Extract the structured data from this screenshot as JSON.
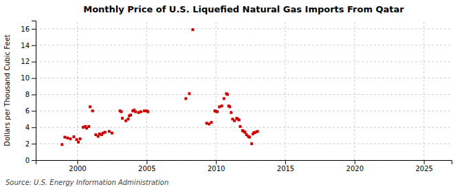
{
  "chart_data": {
    "type": "scatter",
    "title": "Monthly Price of U.S. Liquefied Natural Gas Imports From Qatar",
    "ylabel": "Dollars per Thousand Cubic Feet",
    "annotations": [
      "Source: U.S. Energy Information Administration"
    ],
    "color": "#cc0000",
    "marker": "square",
    "grid": true,
    "xlim": [
      1997.0,
      2027.0
    ],
    "ylim": [
      0,
      17
    ],
    "xticks": [
      2000,
      2005,
      2010,
      2015,
      2020,
      2025
    ],
    "yticks": [
      0,
      2,
      4,
      6,
      8,
      10,
      12,
      14,
      16
    ],
    "x": [
      1998.9,
      1999.1,
      1999.3,
      1999.5,
      1999.75,
      1999.95,
      2000.08,
      2000.2,
      2000.42,
      2000.58,
      2000.67,
      2000.83,
      2000.92,
      2001.1,
      2001.33,
      2001.5,
      2001.6,
      2001.75,
      2001.85,
      2002.0,
      2002.3,
      2002.5,
      2003.08,
      2003.17,
      2003.25,
      2003.5,
      2003.67,
      2003.75,
      2003.85,
      2004.0,
      2004.1,
      2004.2,
      2004.42,
      2004.58,
      2004.83,
      2005.0,
      2005.1,
      2007.83,
      2008.08,
      2009.33,
      2009.5,
      2009.67,
      2009.92,
      2010.0,
      2010.1,
      2010.25,
      2010.42,
      2010.58,
      2010.75,
      2010.83,
      2010.92,
      2011.0,
      2011.1,
      2011.2,
      2011.33,
      2011.5,
      2011.58,
      2011.67,
      2011.75,
      2011.92,
      2012.0,
      2012.1,
      2012.2,
      2012.33,
      2012.42,
      2012.58,
      2012.67,
      2012.75,
      2012.85,
      2013.0,
      2008.33
    ],
    "values": [
      1.9,
      2.8,
      2.7,
      2.6,
      2.85,
      2.5,
      2.2,
      2.6,
      4.0,
      4.1,
      3.9,
      4.1,
      6.5,
      6.0,
      3.1,
      2.9,
      3.2,
      3.1,
      3.3,
      3.4,
      3.5,
      3.3,
      6.0,
      5.9,
      5.1,
      4.8,
      5.0,
      5.4,
      5.5,
      6.0,
      6.1,
      5.9,
      5.8,
      5.9,
      6.0,
      6.0,
      5.9,
      7.5,
      8.1,
      4.5,
      4.4,
      4.6,
      6.0,
      5.95,
      5.9,
      6.5,
      6.6,
      7.5,
      8.1,
      8.0,
      6.6,
      6.5,
      5.8,
      5.0,
      4.8,
      5.1,
      5.0,
      4.9,
      4.1,
      3.6,
      3.5,
      3.4,
      3.1,
      2.9,
      2.8,
      2.0,
      3.2,
      3.35,
      3.4,
      3.5,
      15.9
    ]
  }
}
